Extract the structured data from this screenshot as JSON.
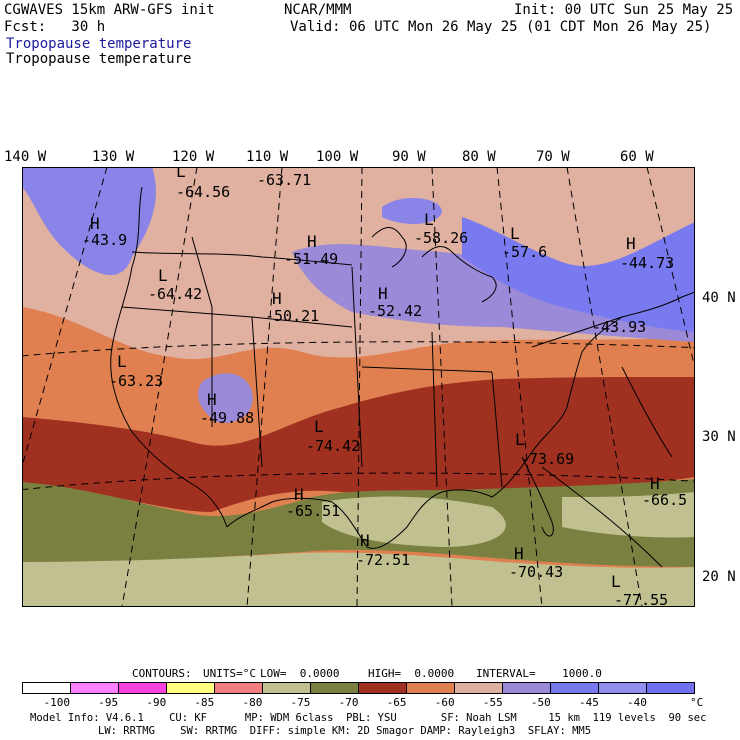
{
  "header": {
    "model": "CGWAVES 15km ARW-GFS init",
    "org": "NCAR/MMM",
    "init": "Init: 00 UTC Sun 25 May 25",
    "fcst": "Fcst:   30 h",
    "valid": "Valid: 06 UTC Mon 26 May 25 (01 CDT Mon 26 May 25)",
    "field_title_blue": "Tropopause temperature",
    "field_title_black": "Tropopause temperature"
  },
  "longitudes": [
    "140 W",
    "130 W",
    "120 W",
    "110 W",
    "100 W",
    "90 W",
    "80 W",
    "70 W",
    "60 W"
  ],
  "latitudes": [
    "40 N",
    "30 N",
    "20 N"
  ],
  "extrema": [
    {
      "letter": "L",
      "value": "-64.56"
    },
    {
      "letter": "",
      "value": "-63.71"
    },
    {
      "letter": "H",
      "value": "-43.9"
    },
    {
      "letter": "L",
      "value": "-64.42"
    },
    {
      "letter": "H",
      "value": "-51.49"
    },
    {
      "letter": "H",
      "value": "-50.21"
    },
    {
      "letter": "H",
      "value": "-52.42"
    },
    {
      "letter": "L",
      "value": "-58.26"
    },
    {
      "letter": "L",
      "value": "-57.6"
    },
    {
      "letter": "H",
      "value": "-44.73"
    },
    {
      "letter": "",
      "value": "-43.93"
    },
    {
      "letter": "L",
      "value": "-63.23"
    },
    {
      "letter": "H",
      "value": "-49.88"
    },
    {
      "letter": "L",
      "value": "-74.42"
    },
    {
      "letter": "L",
      "value": "-73.69"
    },
    {
      "letter": "H",
      "value": "-66.5"
    },
    {
      "letter": "H",
      "value": "-65.51"
    },
    {
      "letter": "H",
      "value": "-72.51"
    },
    {
      "letter": "H",
      "value": "-70.43"
    },
    {
      "letter": "L",
      "value": "-77.55"
    }
  ],
  "contours_line": {
    "contours": "CONTOURS:",
    "units": "UNITS=°C",
    "low": "LOW=  0.0000",
    "high": "HIGH=  0.0000",
    "interval": "INTERVAL=    1000.0"
  },
  "colorbar": {
    "colors": [
      "#ffffff",
      "#ff80ff",
      "#ff40e0",
      "#ffff80",
      "#f08080",
      "#c0c090",
      "#7a8040",
      "#a03020",
      "#e08050",
      "#e0b0a0",
      "#9a8ad8",
      "#7a7af0",
      "#9090f0",
      "#7070f0"
    ],
    "labels": [
      "-100",
      "-95",
      "-90",
      "-85",
      "-80",
      "-75",
      "-70",
      "-65",
      "-60",
      "-55",
      "-50",
      "-45",
      "-40"
    ],
    "unit": "°C"
  },
  "footer": {
    "line1": "Model Info: V4.6.1    CU: KF      MP: WDM 6class  PBL: YSU       SF: Noah LSM     15 km  119 levels  90 sec",
    "line2": "LW: RRTMG    SW: RRTMG  DIFF: simple KM: 2D Smagor DAMP: Rayleigh3  SFLAY: MM5"
  }
}
